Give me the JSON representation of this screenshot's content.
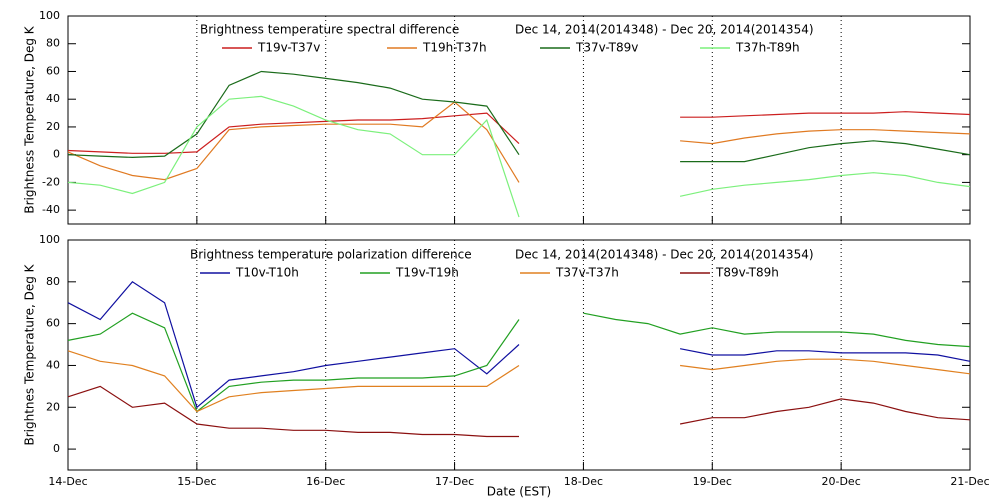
{
  "chart_data": [
    {
      "type": "line",
      "title": "Brightness temperature spectral difference",
      "date_range": "Dec 14, 2014(2014348) - Dec 20, 2014(2014354)",
      "y_label": "Brightness Temperature, Deg K",
      "x": [
        0,
        0.25,
        0.5,
        0.75,
        1,
        1.25,
        1.5,
        1.75,
        2,
        2.25,
        2.5,
        2.75,
        3,
        3.25,
        3.5,
        3.75,
        4,
        4.25,
        4.5,
        4.75,
        5,
        5.25,
        5.5,
        5.75,
        6,
        6.25,
        6.5,
        6.75,
        7
      ],
      "xlim": [
        0,
        7
      ],
      "ylim": [
        -50,
        100
      ],
      "yticks": [
        -40,
        -20,
        0,
        20,
        40,
        60,
        80,
        100
      ],
      "grid": true,
      "series": [
        {
          "name": "T19v-T37v",
          "color": "#cc1f1f",
          "values": [
            3,
            2,
            1,
            1,
            2,
            20,
            22,
            23,
            24,
            25,
            25,
            26,
            28,
            30,
            8,
            null,
            null,
            null,
            null,
            27,
            27,
            28,
            29,
            30,
            30,
            30,
            31,
            30,
            29
          ]
        },
        {
          "name": "T19h-T37h",
          "color": "#e07a22",
          "values": [
            2,
            -8,
            -15,
            -18,
            -10,
            18,
            20,
            21,
            22,
            22,
            22,
            20,
            38,
            18,
            -20,
            null,
            null,
            null,
            null,
            10,
            8,
            12,
            15,
            17,
            18,
            18,
            17,
            16,
            15
          ]
        },
        {
          "name": "T37v-T89v",
          "color": "#1a6b1a",
          "values": [
            0,
            -1,
            -2,
            -1,
            15,
            50,
            60,
            58,
            55,
            52,
            48,
            40,
            38,
            35,
            0,
            null,
            null,
            null,
            null,
            -5,
            -5,
            -5,
            0,
            5,
            8,
            10,
            8,
            4,
            0
          ]
        },
        {
          "name": "T37h-T89h",
          "color": "#7cf07c",
          "values": [
            -20,
            -22,
            -28,
            -20,
            20,
            40,
            42,
            35,
            25,
            18,
            15,
            0,
            0,
            25,
            -45,
            null,
            null,
            null,
            null,
            -30,
            -25,
            -22,
            -20,
            -18,
            -15,
            -13,
            -15,
            -20,
            -23
          ]
        }
      ]
    },
    {
      "type": "line",
      "title": "Brightness temperature polarization difference",
      "date_range": "Dec 14, 2014(2014348) - Dec 20, 2014(2014354)",
      "y_label": "Brightnes Temperature, Deg K",
      "x_label": "Date (EST)",
      "x": [
        0,
        0.25,
        0.5,
        0.75,
        1,
        1.25,
        1.5,
        1.75,
        2,
        2.25,
        2.5,
        2.75,
        3,
        3.25,
        3.5,
        3.75,
        4,
        4.25,
        4.5,
        4.75,
        5,
        5.25,
        5.5,
        5.75,
        6,
        6.25,
        6.5,
        6.75,
        7
      ],
      "xlim": [
        0,
        7
      ],
      "xticks": [
        {
          "value": 0,
          "label": "14-Dec"
        },
        {
          "value": 1,
          "label": "15-Dec"
        },
        {
          "value": 2,
          "label": "16-Dec"
        },
        {
          "value": 3,
          "label": "17-Dec"
        },
        {
          "value": 4,
          "label": "18-Dec"
        },
        {
          "value": 5,
          "label": "19-Dec"
        },
        {
          "value": 6,
          "label": "20-Dec"
        },
        {
          "value": 7,
          "label": "21-Dec"
        }
      ],
      "ylim": [
        -10,
        100
      ],
      "yticks": [
        0,
        20,
        40,
        60,
        80,
        100
      ],
      "grid": true,
      "series": [
        {
          "name": "T10v-T10h",
          "color": "#1010a0",
          "values": [
            70,
            62,
            80,
            70,
            20,
            33,
            35,
            37,
            40,
            42,
            44,
            46,
            48,
            36,
            50,
            null,
            null,
            null,
            null,
            48,
            45,
            45,
            47,
            47,
            46,
            46,
            46,
            45,
            42
          ]
        },
        {
          "name": "T19v-T19h",
          "color": "#22a022",
          "values": [
            52,
            55,
            65,
            58,
            18,
            30,
            32,
            33,
            33,
            34,
            34,
            34,
            35,
            40,
            62,
            null,
            65,
            62,
            60,
            55,
            58,
            55,
            56,
            56,
            56,
            55,
            52,
            50,
            49
          ]
        },
        {
          "name": "T37v-T37h",
          "color": "#e08020",
          "values": [
            47,
            42,
            40,
            35,
            18,
            25,
            27,
            28,
            29,
            30,
            30,
            30,
            30,
            30,
            40,
            null,
            null,
            null,
            null,
            40,
            38,
            40,
            42,
            43,
            43,
            42,
            40,
            38,
            36
          ]
        },
        {
          "name": "T89v-T89h",
          "color": "#8b1010",
          "values": [
            25,
            30,
            20,
            22,
            12,
            10,
            10,
            9,
            9,
            8,
            8,
            7,
            7,
            6,
            6,
            null,
            null,
            null,
            null,
            12,
            15,
            15,
            18,
            20,
            24,
            22,
            18,
            15,
            14
          ]
        }
      ]
    }
  ]
}
